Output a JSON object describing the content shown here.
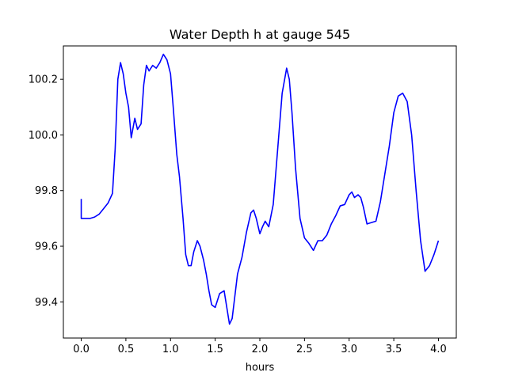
{
  "chart_data": {
    "type": "line",
    "title": "Water Depth h at gauge 545",
    "xlabel": "hours",
    "ylabel": "",
    "xlim": [
      -0.2,
      4.2
    ],
    "ylim": [
      99.27,
      100.32
    ],
    "xticks": [
      0.0,
      0.5,
      1.0,
      1.5,
      2.0,
      2.5,
      3.0,
      3.5,
      4.0
    ],
    "xtick_labels": [
      "0.0",
      "0.5",
      "1.0",
      "1.5",
      "2.0",
      "2.5",
      "3.0",
      "3.5",
      "4.0"
    ],
    "yticks": [
      99.4,
      99.6,
      99.8,
      100.0,
      100.2
    ],
    "ytick_labels": [
      "99.4",
      "99.6",
      "99.8",
      "100.0",
      "100.2"
    ],
    "grid": false,
    "series": [
      {
        "color": "#0000ff",
        "x": [
          0.0,
          0.0,
          0.05,
          0.1,
          0.15,
          0.2,
          0.25,
          0.3,
          0.35,
          0.38,
          0.41,
          0.44,
          0.47,
          0.5,
          0.53,
          0.56,
          0.6,
          0.63,
          0.67,
          0.7,
          0.73,
          0.76,
          0.8,
          0.84,
          0.88,
          0.92,
          0.96,
          1.0,
          1.03,
          1.07,
          1.1,
          1.14,
          1.17,
          1.2,
          1.23,
          1.26,
          1.3,
          1.33,
          1.37,
          1.4,
          1.43,
          1.46,
          1.5,
          1.55,
          1.6,
          1.63,
          1.66,
          1.69,
          1.72,
          1.75,
          1.8,
          1.85,
          1.9,
          1.93,
          1.96,
          2.0,
          2.03,
          2.06,
          2.1,
          2.15,
          2.2,
          2.25,
          2.3,
          2.33,
          2.36,
          2.4,
          2.45,
          2.5,
          2.55,
          2.6,
          2.65,
          2.7,
          2.75,
          2.8,
          2.85,
          2.9,
          2.95,
          3.0,
          3.03,
          3.06,
          3.1,
          3.13,
          3.16,
          3.2,
          3.25,
          3.3,
          3.35,
          3.4,
          3.45,
          3.5,
          3.55,
          3.6,
          3.65,
          3.7,
          3.75,
          3.8,
          3.85,
          3.9,
          3.95,
          4.0
        ],
        "y": [
          99.77,
          99.7,
          99.7,
          99.7,
          99.705,
          99.715,
          99.735,
          99.755,
          99.79,
          99.95,
          100.2,
          100.26,
          100.22,
          100.15,
          100.1,
          99.99,
          100.06,
          100.02,
          100.04,
          100.18,
          100.25,
          100.23,
          100.25,
          100.24,
          100.26,
          100.29,
          100.27,
          100.22,
          100.1,
          99.93,
          99.85,
          99.7,
          99.57,
          99.53,
          99.53,
          99.58,
          99.62,
          99.6,
          99.55,
          99.5,
          99.44,
          99.39,
          99.38,
          99.43,
          99.44,
          99.38,
          99.32,
          99.34,
          99.42,
          99.5,
          99.56,
          99.65,
          99.72,
          99.73,
          99.7,
          99.645,
          99.67,
          99.69,
          99.67,
          99.75,
          99.95,
          100.15,
          100.24,
          100.2,
          100.08,
          99.88,
          99.7,
          99.63,
          99.61,
          99.585,
          99.62,
          99.62,
          99.64,
          99.68,
          99.71,
          99.745,
          99.75,
          99.785,
          99.795,
          99.775,
          99.785,
          99.775,
          99.74,
          99.68,
          99.685,
          99.69,
          99.76,
          99.86,
          99.96,
          100.08,
          100.14,
          100.15,
          100.12,
          100.0,
          99.8,
          99.62,
          99.51,
          99.53,
          99.57,
          99.62
        ]
      }
    ]
  }
}
